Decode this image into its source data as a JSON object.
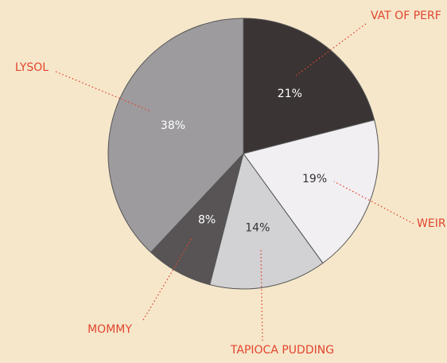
{
  "chart_data": {
    "type": "pie",
    "categories": [
      "VAT OF PERF",
      "WEIR",
      "TAPIOCA PUDDING",
      "MOMMY",
      "LYSOL"
    ],
    "values": [
      21,
      19,
      14,
      8,
      38
    ],
    "value_labels": [
      "21%",
      "19%",
      "14%",
      "8%",
      "38%"
    ],
    "colors": [
      "#3a3434",
      "#f1eff2",
      "#d2d1d4",
      "#585455",
      "#9d9b9e"
    ]
  }
}
